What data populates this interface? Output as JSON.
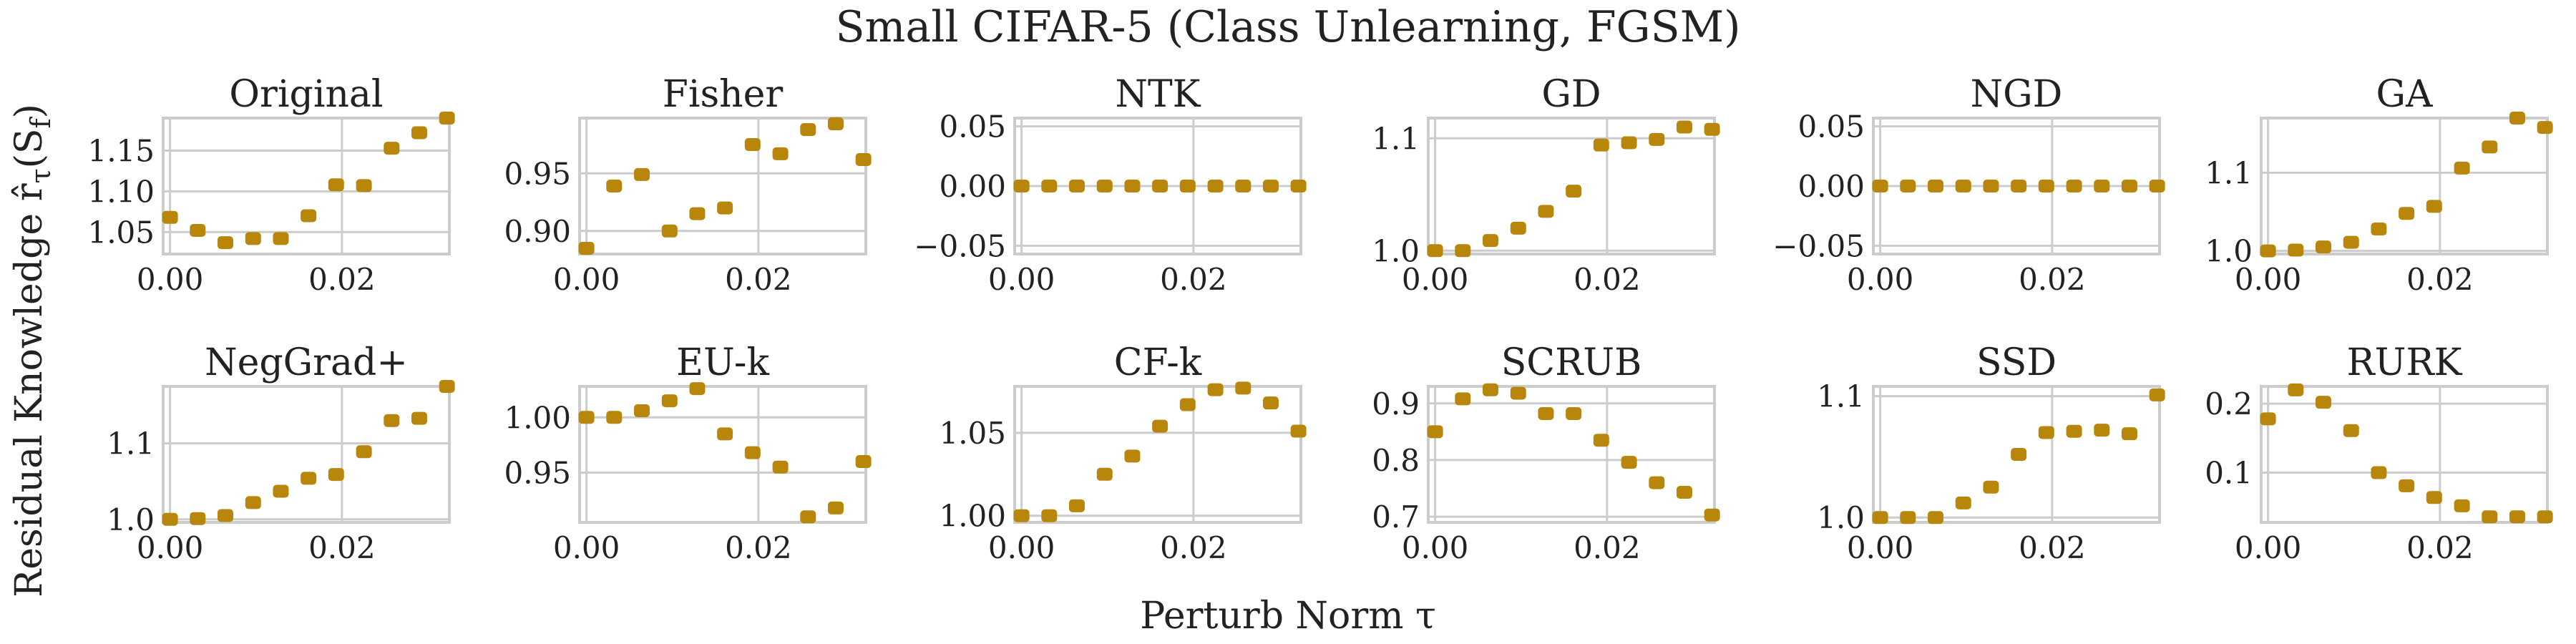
{
  "figure": {
    "title": "Small CIFAR-5 (Class Unlearning, FGSM)",
    "xlabel": "Perturb Norm τ",
    "ylabel_main": "Residual Knowledge r̂",
    "ylabel_sub": "τ",
    "ylabel_paren": "(S",
    "ylabel_sub2": "f",
    "ylabel_end": ")",
    "marker_color": "#b8860b"
  },
  "chart_data": [
    {
      "type": "scatter",
      "title": "Original",
      "x": [
        0.0,
        0.00322,
        0.00644,
        0.00967,
        0.01289,
        0.01611,
        0.01933,
        0.02256,
        0.02578,
        0.029,
        0.03222
      ],
      "values": [
        1.068,
        1.052,
        1.037,
        1.042,
        1.042,
        1.07,
        1.108,
        1.107,
        1.153,
        1.172,
        1.19
      ],
      "ylim": [
        1.023,
        1.19
      ],
      "yticks": [
        1.05,
        1.1,
        1.15
      ],
      "ytick_labels": [
        "1.05",
        "1.10",
        "1.15"
      ],
      "xlim": [
        -0.0008,
        0.0325
      ],
      "xticks": [
        0,
        0.02
      ],
      "xtick_labels": [
        "0.00",
        "0.02"
      ]
    },
    {
      "type": "scatter",
      "title": "Fisher",
      "x": [
        0.0,
        0.00322,
        0.00644,
        0.00967,
        0.01289,
        0.01611,
        0.01933,
        0.02256,
        0.02578,
        0.029,
        0.03222
      ],
      "values": [
        0.885,
        0.939,
        0.949,
        0.9,
        0.915,
        0.92,
        0.975,
        0.967,
        0.988,
        0.993,
        0.962
      ],
      "ylim": [
        0.88,
        0.998
      ],
      "yticks": [
        0.9,
        0.95
      ],
      "ytick_labels": [
        "0.90",
        "0.95"
      ],
      "xlim": [
        -0.0008,
        0.0325
      ],
      "xticks": [
        0,
        0.02
      ],
      "xtick_labels": [
        "0.00",
        "0.02"
      ]
    },
    {
      "type": "scatter",
      "title": "NTK",
      "x": [
        0.0,
        0.00322,
        0.00644,
        0.00967,
        0.01289,
        0.01611,
        0.01933,
        0.02256,
        0.02578,
        0.029,
        0.03222
      ],
      "values": [
        0,
        0,
        0,
        0,
        0,
        0,
        0,
        0,
        0,
        0,
        0
      ],
      "ylim": [
        -0.057,
        0.057
      ],
      "yticks": [
        -0.05,
        0,
        0.05
      ],
      "ytick_labels": [
        "−0.05",
        "0.00",
        "0.05"
      ],
      "xlim": [
        -0.0008,
        0.0325
      ],
      "xticks": [
        0,
        0.02
      ],
      "xtick_labels": [
        "0.00",
        "0.02"
      ]
    },
    {
      "type": "scatter",
      "title": "GD",
      "x": [
        0.0,
        0.00322,
        0.00644,
        0.00967,
        0.01289,
        0.01611,
        0.01933,
        0.02256,
        0.02578,
        0.029,
        0.03222
      ],
      "values": [
        1.0,
        1.0,
        1.009,
        1.02,
        1.035,
        1.053,
        1.094,
        1.096,
        1.099,
        1.11,
        1.108
      ],
      "ylim": [
        0.997,
        1.118
      ],
      "yticks": [
        1.0,
        1.1
      ],
      "ytick_labels": [
        "1.0",
        "1.1"
      ],
      "xlim": [
        -0.0008,
        0.0325
      ],
      "xticks": [
        0,
        0.02
      ],
      "xtick_labels": [
        "0.00",
        "0.02"
      ]
    },
    {
      "type": "scatter",
      "title": "NGD",
      "x": [
        0.0,
        0.00322,
        0.00644,
        0.00967,
        0.01289,
        0.01611,
        0.01933,
        0.02256,
        0.02578,
        0.029,
        0.03222
      ],
      "values": [
        0,
        0,
        0,
        0,
        0,
        0,
        0,
        0,
        0,
        0,
        0
      ],
      "ylim": [
        -0.057,
        0.057
      ],
      "yticks": [
        -0.05,
        0,
        0.05
      ],
      "ytick_labels": [
        "−0.05",
        "0.00",
        "0.05"
      ],
      "xlim": [
        -0.0008,
        0.0325
      ],
      "xticks": [
        0,
        0.02
      ],
      "xtick_labels": [
        "0.00",
        "0.02"
      ]
    },
    {
      "type": "scatter",
      "title": "GA",
      "x": [
        0.0,
        0.00322,
        0.00644,
        0.00967,
        0.01289,
        0.01611,
        0.01933,
        0.02256,
        0.02578,
        0.029,
        0.03222
      ],
      "values": [
        1.0,
        1.001,
        1.005,
        1.011,
        1.028,
        1.048,
        1.057,
        1.106,
        1.133,
        1.17,
        1.158
      ],
      "ylim": [
        0.996,
        1.17
      ],
      "yticks": [
        1.0,
        1.1
      ],
      "ytick_labels": [
        "1.0",
        "1.1"
      ],
      "xlim": [
        -0.0008,
        0.0325
      ],
      "xticks": [
        0,
        0.02
      ],
      "xtick_labels": [
        "0.00",
        "0.02"
      ]
    },
    {
      "type": "scatter",
      "title": "NegGrad+",
      "x": [
        0.0,
        0.00322,
        0.00644,
        0.00967,
        0.01289,
        0.01611,
        0.01933,
        0.02256,
        0.02578,
        0.029,
        0.03222
      ],
      "values": [
        1.0,
        1.001,
        1.005,
        1.022,
        1.037,
        1.054,
        1.059,
        1.089,
        1.13,
        1.133,
        1.175
      ],
      "ylim": [
        0.996,
        1.175
      ],
      "yticks": [
        1.0,
        1.1
      ],
      "ytick_labels": [
        "1.0",
        "1.1"
      ],
      "xlim": [
        -0.0008,
        0.0325
      ],
      "xticks": [
        0,
        0.02
      ],
      "xtick_labels": [
        "0.00",
        "0.02"
      ]
    },
    {
      "type": "scatter",
      "title": "EU-k",
      "x": [
        0.0,
        0.00322,
        0.00644,
        0.00967,
        0.01289,
        0.01611,
        0.01933,
        0.02256,
        0.02578,
        0.029,
        0.03222
      ],
      "values": [
        1.0,
        1.0,
        1.006,
        1.015,
        1.026,
        0.985,
        0.968,
        0.955,
        0.91,
        0.918,
        0.96
      ],
      "ylim": [
        0.905,
        1.028
      ],
      "yticks": [
        0.95,
        1.0
      ],
      "ytick_labels": [
        "0.95",
        "1.00"
      ],
      "xlim": [
        -0.0008,
        0.0325
      ],
      "xticks": [
        0,
        0.02
      ],
      "xtick_labels": [
        "0.00",
        "0.02"
      ]
    },
    {
      "type": "scatter",
      "title": "CF-k",
      "x": [
        0.0,
        0.00322,
        0.00644,
        0.00967,
        0.01289,
        0.01611,
        0.01933,
        0.02256,
        0.02578,
        0.029,
        0.03222
      ],
      "values": [
        1.0,
        1.0,
        1.006,
        1.025,
        1.036,
        1.054,
        1.067,
        1.076,
        1.077,
        1.068,
        1.051
      ],
      "ylim": [
        0.996,
        1.078
      ],
      "yticks": [
        1.0,
        1.05
      ],
      "ytick_labels": [
        "1.00",
        "1.05"
      ],
      "xlim": [
        -0.0008,
        0.0325
      ],
      "xticks": [
        0,
        0.02
      ],
      "xtick_labels": [
        "0.00",
        "0.02"
      ]
    },
    {
      "type": "scatter",
      "title": "SCRUB",
      "x": [
        0.0,
        0.00322,
        0.00644,
        0.00967,
        0.01289,
        0.01611,
        0.01933,
        0.02256,
        0.02578,
        0.029,
        0.03222
      ],
      "values": [
        0.85,
        0.908,
        0.924,
        0.918,
        0.882,
        0.882,
        0.835,
        0.796,
        0.76,
        0.743,
        0.703
      ],
      "ylim": [
        0.69,
        0.93
      ],
      "yticks": [
        0.7,
        0.8,
        0.9
      ],
      "ytick_labels": [
        "0.7",
        "0.8",
        "0.9"
      ],
      "xlim": [
        -0.0008,
        0.0325
      ],
      "xticks": [
        0,
        0.02
      ],
      "xtick_labels": [
        "0.00",
        "0.02"
      ]
    },
    {
      "type": "scatter",
      "title": "SSD",
      "x": [
        0.0,
        0.00322,
        0.00644,
        0.00967,
        0.01289,
        0.01611,
        0.01933,
        0.02256,
        0.02578,
        0.029,
        0.03222
      ],
      "values": [
        1.0,
        1.0,
        1.0,
        1.012,
        1.025,
        1.052,
        1.07,
        1.071,
        1.072,
        1.069,
        1.101
      ],
      "ylim": [
        0.996,
        1.108
      ],
      "yticks": [
        1.0,
        1.1
      ],
      "ytick_labels": [
        "1.0",
        "1.1"
      ],
      "xlim": [
        -0.0008,
        0.0325
      ],
      "xticks": [
        0,
        0.02
      ],
      "xtick_labels": [
        "0.00",
        "0.02"
      ]
    },
    {
      "type": "scatter",
      "title": "RURK",
      "x": [
        0.0,
        0.00322,
        0.00644,
        0.00967,
        0.01289,
        0.01611,
        0.01933,
        0.02256,
        0.02578,
        0.029,
        0.03222
      ],
      "values": [
        0.178,
        0.22,
        0.202,
        0.161,
        0.1,
        0.081,
        0.064,
        0.052,
        0.036,
        0.036,
        0.036
      ],
      "ylim": [
        0.028,
        0.225
      ],
      "yticks": [
        0.1,
        0.2
      ],
      "ytick_labels": [
        "0.1",
        "0.2"
      ],
      "xlim": [
        -0.0008,
        0.0325
      ],
      "xticks": [
        0,
        0.02
      ],
      "xtick_labels": [
        "0.00",
        "0.02"
      ]
    }
  ]
}
